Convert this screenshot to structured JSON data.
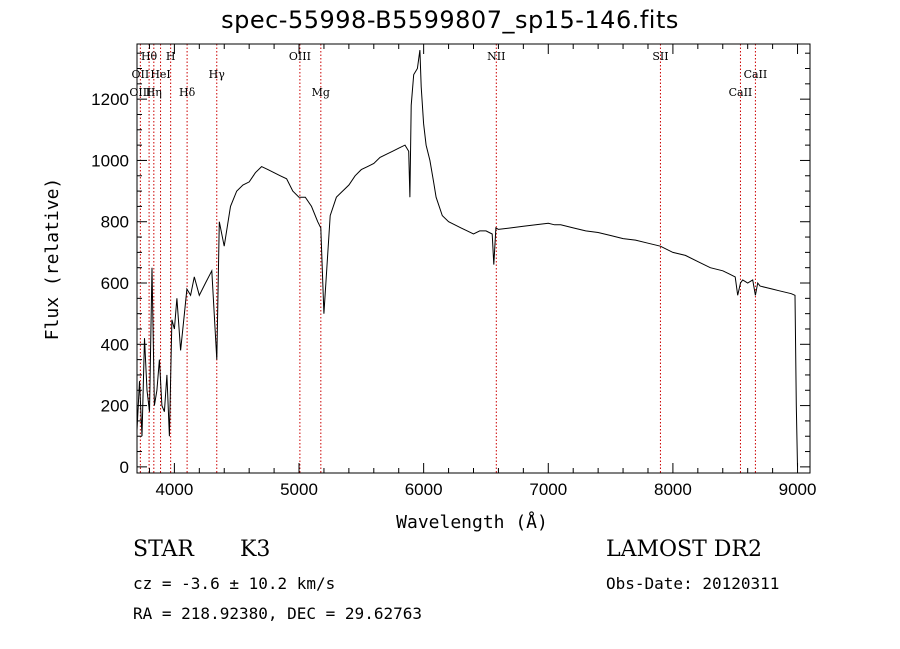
{
  "title": "spec-55998-B5599807_sp15-146.fits",
  "info": {
    "obj_class": "STAR",
    "obj_subclass": "K3",
    "survey": "LAMOST DR2",
    "cz": "cz = -3.6 ± 10.2 km/s",
    "obs_date": "Obs-Date: 20120311",
    "radec": "RA = 218.92380, DEC =  29.62763"
  },
  "chart_data": {
    "type": "line",
    "title": "spec-55998-B5599807_sp15-146.fits",
    "xlabel": "Wavelength (Å)",
    "ylabel": "Flux (relative)",
    "xlim": [
      3700,
      9100
    ],
    "ylim": [
      -20,
      1380
    ],
    "xticks": [
      4000,
      5000,
      6000,
      7000,
      8000,
      9000
    ],
    "yticks": [
      0,
      200,
      400,
      600,
      800,
      1000,
      1200
    ],
    "grid": false,
    "line_color": "#000000",
    "marker_color": "#cc0000",
    "series": [
      {
        "x": [
          3700,
          3720,
          3740,
          3760,
          3780,
          3800,
          3820,
          3840,
          3860,
          3880,
          3900,
          3920,
          3940,
          3960,
          3980,
          4000,
          4020,
          4050,
          4080,
          4100,
          4130,
          4160,
          4200,
          4250,
          4300,
          4340,
          4360,
          4400,
          4450,
          4500,
          4550,
          4600,
          4650,
          4700,
          4750,
          4800,
          4850,
          4900,
          4950,
          5000,
          5050,
          5100,
          5150,
          5175,
          5200,
          5250,
          5300,
          5350,
          5400,
          5450,
          5500,
          5550,
          5600,
          5650,
          5700,
          5750,
          5800,
          5850,
          5880,
          5890,
          5900,
          5920,
          5950,
          5970,
          5980,
          6000,
          6020,
          6050,
          6080,
          6100,
          6150,
          6200,
          6250,
          6300,
          6350,
          6400,
          6450,
          6500,
          6550,
          6563,
          6580,
          6600,
          6700,
          6800,
          6900,
          7000,
          7050,
          7100,
          7200,
          7300,
          7400,
          7500,
          7600,
          7700,
          7800,
          7900,
          8000,
          8100,
          8200,
          8300,
          8400,
          8450,
          8500,
          8520,
          8542,
          8560,
          8600,
          8640,
          8662,
          8680,
          8700,
          8750,
          8800,
          8850,
          8900,
          8950,
          8980,
          8990,
          9000
        ],
        "y": [
          120,
          280,
          100,
          420,
          250,
          180,
          650,
          200,
          250,
          350,
          200,
          180,
          300,
          100,
          480,
          450,
          550,
          380,
          500,
          580,
          560,
          620,
          560,
          600,
          640,
          350,
          800,
          720,
          850,
          900,
          920,
          930,
          960,
          980,
          970,
          960,
          950,
          940,
          900,
          880,
          880,
          850,
          800,
          780,
          500,
          820,
          880,
          900,
          920,
          950,
          970,
          980,
          990,
          1010,
          1020,
          1030,
          1040,
          1050,
          1030,
          880,
          1180,
          1280,
          1300,
          1360,
          1240,
          1120,
          1050,
          1000,
          930,
          880,
          820,
          800,
          790,
          780,
          770,
          760,
          770,
          770,
          760,
          660,
          780,
          775,
          780,
          785,
          790,
          795,
          790,
          790,
          780,
          770,
          765,
          755,
          745,
          740,
          730,
          720,
          700,
          690,
          670,
          650,
          640,
          630,
          620,
          560,
          600,
          610,
          600,
          610,
          560,
          600,
          590,
          585,
          580,
          575,
          570,
          565,
          560,
          200,
          0
        ]
      }
    ],
    "line_markers": [
      {
        "label": "Hθ",
        "x": 3797,
        "row": 0
      },
      {
        "label": "H",
        "x": 3970,
        "row": 0
      },
      {
        "label": "OIII",
        "x": 5007,
        "row": 0
      },
      {
        "label": "NII",
        "x": 6583,
        "row": 0
      },
      {
        "label": "SII",
        "x": 7900,
        "row": 0
      },
      {
        "label": "OII",
        "x": 3727,
        "row": 1
      },
      {
        "label": "HeI",
        "x": 3889,
        "row": 1
      },
      {
        "label": "Hγ",
        "x": 4340,
        "row": 1
      },
      {
        "label": "CaII",
        "x": 8662,
        "row": 1
      },
      {
        "label": "OIII",
        "x": 3727,
        "row": 2
      },
      {
        "label": "Hη",
        "x": 3835,
        "row": 2
      },
      {
        "label": "Hδ",
        "x": 4102,
        "row": 2
      },
      {
        "label": "Mg",
        "x": 5175,
        "row": 2
      },
      {
        "label": "CaII",
        "x": 8542,
        "row": 2
      }
    ],
    "marker_lines_x": [
      3727,
      3797,
      3835,
      3889,
      3970,
      4102,
      4340,
      5007,
      5175,
      6583,
      7900,
      8542,
      8662
    ]
  }
}
